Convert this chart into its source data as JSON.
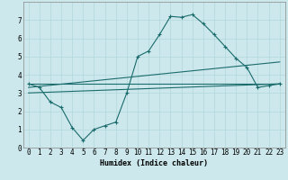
{
  "title": "",
  "xlabel": "Humidex (Indice chaleur)",
  "xlim": [
    -0.5,
    23.5
  ],
  "ylim": [
    0,
    8
  ],
  "xticks": [
    0,
    1,
    2,
    3,
    4,
    5,
    6,
    7,
    8,
    9,
    10,
    11,
    12,
    13,
    14,
    15,
    16,
    17,
    18,
    19,
    20,
    21,
    22,
    23
  ],
  "yticks": [
    0,
    1,
    2,
    3,
    4,
    5,
    6,
    7
  ],
  "bg_color": "#cce8ec",
  "line_color": "#1a6b6b",
  "grid_color": "#b0d8dc",
  "line1_x": [
    0,
    1,
    2,
    3,
    4,
    5,
    6,
    7,
    8,
    9,
    10,
    11,
    12,
    13,
    14,
    15,
    16,
    17,
    18,
    19,
    20,
    21,
    22,
    23
  ],
  "line1_y": [
    3.5,
    3.3,
    2.5,
    2.2,
    1.1,
    0.4,
    1.0,
    1.2,
    1.4,
    3.0,
    5.0,
    5.3,
    6.2,
    7.2,
    7.15,
    7.3,
    6.8,
    6.2,
    5.55,
    4.9,
    4.4,
    3.3,
    3.4,
    3.5
  ],
  "line2_x": [
    0,
    23
  ],
  "line2_y": [
    3.5,
    3.5
  ],
  "line3_x": [
    0,
    23
  ],
  "line3_y": [
    3.0,
    3.5
  ],
  "line4_x": [
    0,
    23
  ],
  "line4_y": [
    3.3,
    4.7
  ]
}
